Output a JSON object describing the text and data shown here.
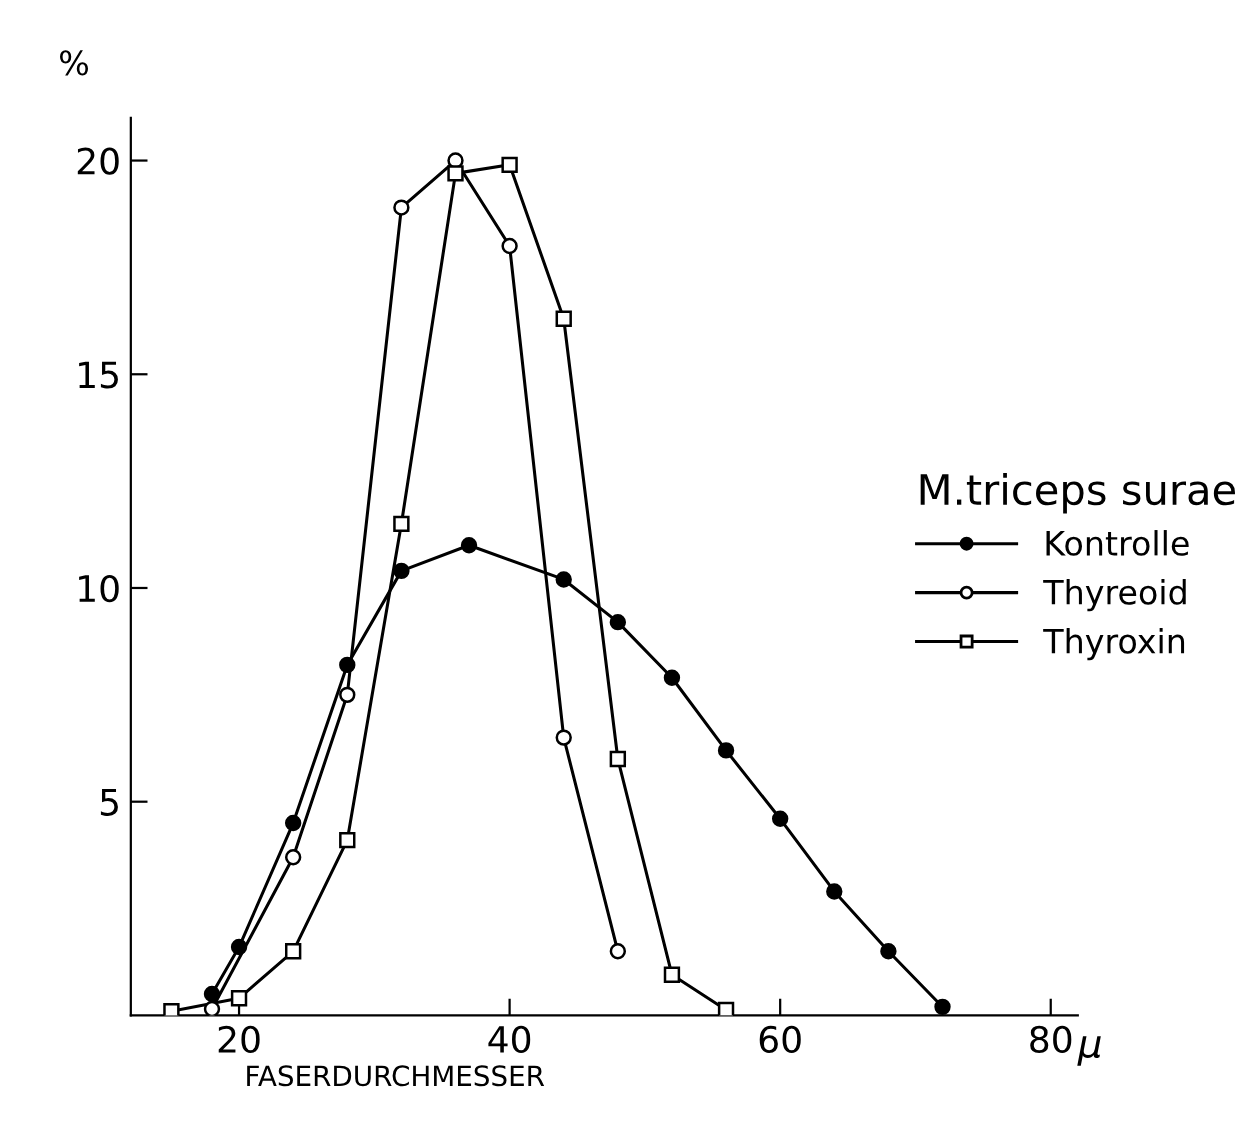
{
  "chart_data": {
    "type": "line",
    "ylabel": "%",
    "xlabel": "FASERDURCHMESSER",
    "legend_title": "M.triceps surae",
    "legend": "right",
    "xlim": [
      12,
      82
    ],
    "xticks": [
      20,
      40,
      60,
      80
    ],
    "ylim": [
      0,
      21
    ],
    "yticks": [
      5,
      10,
      15,
      20
    ],
    "grid": false,
    "line_style": "solid",
    "annotations": [
      "µ"
    ],
    "series": [
      {
        "name": "Kontrolle",
        "color": "#000000",
        "marker": "circle",
        "x": [
          18,
          20,
          24,
          28,
          32,
          37,
          44,
          48,
          52,
          56,
          60,
          64,
          68,
          72
        ],
        "values": [
          0.5,
          1.6,
          4.5,
          8.2,
          10.4,
          11.0,
          10.2,
          9.2,
          7.9,
          6.2,
          4.6,
          2.9,
          1.5,
          0.2
        ]
      },
      {
        "name": "Thyreoid",
        "color": "#000000",
        "marker": "circle-open",
        "x": [
          18,
          24,
          28,
          32,
          36,
          40,
          44,
          48
        ],
        "values": [
          0.15,
          3.7,
          7.5,
          18.9,
          20.0,
          18.0,
          6.5,
          1.5
        ]
      },
      {
        "name": "Thyroxin",
        "color": "#000000",
        "marker": "square-open",
        "x": [
          15,
          20,
          24,
          28,
          32,
          36,
          40,
          44,
          48,
          52,
          56
        ],
        "values": [
          0.1,
          0.4,
          1.5,
          4.1,
          11.5,
          19.7,
          19.9,
          16.3,
          6.0,
          0.95,
          0.13
        ]
      }
    ]
  }
}
